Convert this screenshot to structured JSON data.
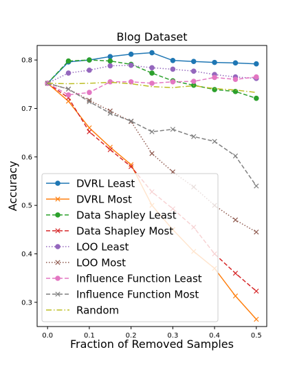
{
  "chart_data": {
    "type": "line",
    "title": "Blog Dataset",
    "xlabel": "Fraction of Removed Samples",
    "ylabel": "Accuracy",
    "xlim": [
      -0.025,
      0.525
    ],
    "ylim": [
      0.25,
      0.83
    ],
    "x_ticks": [
      0.0,
      0.1,
      0.2,
      0.3,
      0.4,
      0.5
    ],
    "x_tick_labels": [
      "0.0",
      "0.1",
      "0.2",
      "0.3",
      "0.4",
      "0.5"
    ],
    "y_ticks": [
      0.3,
      0.4,
      0.5,
      0.6,
      0.7,
      0.8
    ],
    "y_tick_labels": [
      "0.3",
      "0.4",
      "0.5",
      "0.6",
      "0.7",
      "0.8"
    ],
    "grid": false,
    "legend_position": "lower-left",
    "x": [
      0.0,
      0.05,
      0.1,
      0.15,
      0.2,
      0.25,
      0.3,
      0.35,
      0.4,
      0.45,
      0.5
    ],
    "series": [
      {
        "name": "DVRL Least",
        "color": "#1f77b4",
        "linestyle": "solid",
        "marker": "circle",
        "values": [
          0.752,
          0.796,
          0.8,
          0.807,
          0.812,
          0.815,
          0.799,
          0.797,
          0.795,
          0.794,
          0.792
        ]
      },
      {
        "name": "DVRL Most",
        "color": "#ff7f0e",
        "linestyle": "solid",
        "marker": "x",
        "values": [
          0.752,
          0.715,
          0.66,
          0.62,
          0.584,
          0.5,
          0.45,
          0.405,
          0.37,
          0.313,
          0.265
        ]
      },
      {
        "name": "Data Shapley Least",
        "color": "#2ca02c",
        "linestyle": "dashed",
        "marker": "circle",
        "values": [
          0.752,
          0.798,
          0.8,
          0.798,
          0.791,
          0.773,
          0.757,
          0.748,
          0.739,
          0.735,
          0.721
        ]
      },
      {
        "name": "Data Shapley Most",
        "color": "#d62728",
        "linestyle": "dashed",
        "marker": "x",
        "values": [
          0.752,
          0.722,
          0.652,
          0.615,
          0.58,
          0.528,
          0.493,
          0.455,
          0.4,
          0.36,
          0.323
        ]
      },
      {
        "name": "LOO Least",
        "color": "#9467bd",
        "linestyle": "dotted",
        "marker": "circle",
        "values": [
          0.752,
          0.773,
          0.779,
          0.788,
          0.789,
          0.784,
          0.781,
          0.777,
          0.77,
          0.765,
          0.762
        ]
      },
      {
        "name": "LOO Most",
        "color": "#8c564b",
        "linestyle": "dotted",
        "marker": "x",
        "values": [
          0.752,
          0.74,
          0.717,
          0.695,
          0.673,
          0.607,
          0.569,
          0.538,
          0.5,
          0.47,
          0.445
        ]
      },
      {
        "name": "Influence Function Least",
        "color": "#e377c2",
        "linestyle": "dashed",
        "marker": "circle",
        "values": [
          0.752,
          0.728,
          0.733,
          0.755,
          0.755,
          0.752,
          0.755,
          0.756,
          0.764,
          0.76,
          0.765
        ]
      },
      {
        "name": "Influence Function Most",
        "color": "#7f7f7f",
        "linestyle": "dashed",
        "marker": "x",
        "values": [
          0.752,
          0.74,
          0.714,
          0.69,
          0.674,
          0.652,
          0.657,
          0.642,
          0.632,
          0.602,
          0.54
        ]
      },
      {
        "name": "Random",
        "color": "#bcbd22",
        "linestyle": "dashdot",
        "marker": "none",
        "values": [
          0.752,
          0.751,
          0.752,
          0.754,
          0.751,
          0.745,
          0.743,
          0.747,
          0.741,
          0.738,
          0.733
        ]
      }
    ]
  }
}
